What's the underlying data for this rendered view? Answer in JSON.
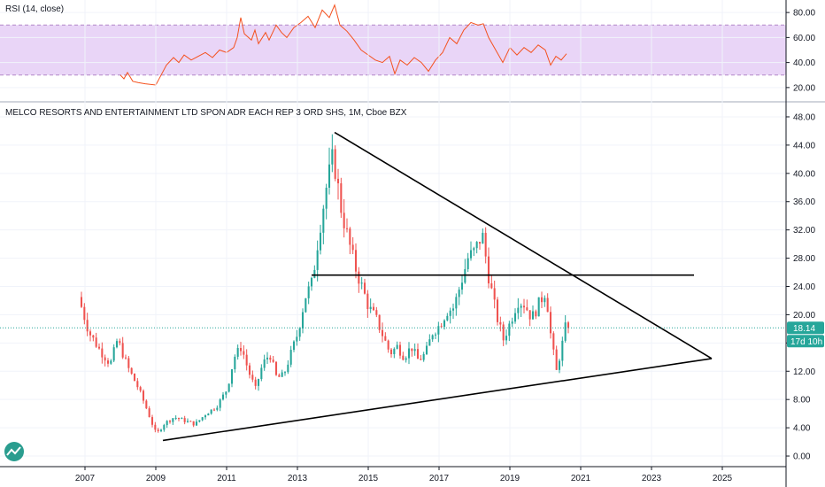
{
  "colors": {
    "up": "#26a69a",
    "down": "#ef5350",
    "rsi_line": "#f4511e",
    "rsi_band": "#e9d5f7",
    "rsi_band_border": "#b388c8",
    "grid": "#f0f3fa",
    "axis": "#131722",
    "price_tag": "#26a69a",
    "trendline": "#000000",
    "watermark": "#2a9d8f"
  },
  "rsi_panel": {
    "title": "RSI (14, close)",
    "ticks": [
      "80.00",
      "60.00",
      "40.00",
      "20.00"
    ],
    "tick_values": [
      80,
      60,
      40,
      20
    ],
    "upper_band": 70,
    "lower_band": 30,
    "points": [
      [
        2008.0,
        30
      ],
      [
        2008.1,
        27
      ],
      [
        2008.2,
        32
      ],
      [
        2008.35,
        25
      ],
      [
        2008.5,
        24
      ],
      [
        2008.7,
        23
      ],
      [
        2009.0,
        22
      ],
      [
        2009.15,
        30
      ],
      [
        2009.3,
        38
      ],
      [
        2009.5,
        44
      ],
      [
        2009.65,
        40
      ],
      [
        2009.8,
        46
      ],
      [
        2010.0,
        42
      ],
      [
        2010.2,
        45
      ],
      [
        2010.4,
        48
      ],
      [
        2010.6,
        44
      ],
      [
        2010.8,
        50
      ],
      [
        2011.0,
        48
      ],
      [
        2011.2,
        52
      ],
      [
        2011.3,
        60
      ],
      [
        2011.4,
        76
      ],
      [
        2011.5,
        63
      ],
      [
        2011.7,
        58
      ],
      [
        2011.8,
        66
      ],
      [
        2011.9,
        55
      ],
      [
        2012.1,
        64
      ],
      [
        2012.2,
        58
      ],
      [
        2012.4,
        70
      ],
      [
        2012.55,
        64
      ],
      [
        2012.7,
        60
      ],
      [
        2012.9,
        68
      ],
      [
        2013.1,
        72
      ],
      [
        2013.3,
        77
      ],
      [
        2013.5,
        68
      ],
      [
        2013.7,
        82
      ],
      [
        2013.9,
        76
      ],
      [
        2014.05,
        86
      ],
      [
        2014.2,
        70
      ],
      [
        2014.4,
        65
      ],
      [
        2014.6,
        58
      ],
      [
        2014.8,
        50
      ],
      [
        2015.0,
        46
      ],
      [
        2015.2,
        42
      ],
      [
        2015.4,
        40
      ],
      [
        2015.6,
        45
      ],
      [
        2015.75,
        31
      ],
      [
        2015.9,
        42
      ],
      [
        2016.1,
        38
      ],
      [
        2016.3,
        44
      ],
      [
        2016.5,
        40
      ],
      [
        2016.7,
        33
      ],
      [
        2016.9,
        42
      ],
      [
        2017.1,
        48
      ],
      [
        2017.3,
        60
      ],
      [
        2017.5,
        55
      ],
      [
        2017.7,
        66
      ],
      [
        2017.9,
        72
      ],
      [
        2018.1,
        70
      ],
      [
        2018.25,
        71
      ],
      [
        2018.4,
        60
      ],
      [
        2018.6,
        50
      ],
      [
        2018.8,
        40
      ],
      [
        2019.0,
        52
      ],
      [
        2019.2,
        46
      ],
      [
        2019.4,
        52
      ],
      [
        2019.6,
        48
      ],
      [
        2019.8,
        54
      ],
      [
        2020.0,
        50
      ],
      [
        2020.15,
        38
      ],
      [
        2020.3,
        45
      ],
      [
        2020.45,
        42
      ],
      [
        2020.6,
        47
      ]
    ]
  },
  "main_panel": {
    "title": "MELCO RESORTS AND ENTERTAINMENT LTD SPON ADR EACH REP 3 ORD SHS, 1M, Cboe BZX",
    "price_ticks": [
      "48.00",
      "44.00",
      "40.00",
      "36.00",
      "32.00",
      "28.00",
      "24.00",
      "20.00",
      "16.00",
      "12.00",
      "8.00",
      "4.00",
      "0.00"
    ],
    "price_tick_values": [
      48,
      44,
      40,
      36,
      32,
      28,
      24,
      20,
      16,
      12,
      8,
      4,
      0
    ],
    "year_ticks": [
      "2007",
      "2009",
      "2011",
      "2013",
      "2015",
      "2017",
      "2019",
      "2021",
      "2023",
      "2025"
    ],
    "year_tick_values": [
      2007,
      2009,
      2011,
      2013,
      2015,
      2017,
      2019,
      2021,
      2023,
      2025
    ],
    "last_price": "18.14",
    "last_price_value": 18.14,
    "countdown": "17d 10h"
  },
  "chart_data": {
    "type": "candlestick",
    "title": "MELCO RESORTS AND ENTERTAINMENT LTD SPON ADR EACH REP 3 ORD SHS, 1M, Cboe BZX",
    "xlabel": "",
    "ylabel": "",
    "xlim": [
      2004.6,
      2026.8
    ],
    "ylim": [
      -1.5,
      49.5
    ],
    "anchors": [
      [
        2006.9,
        22.5
      ],
      [
        2007.2,
        17.5
      ],
      [
        2007.5,
        15.0
      ],
      [
        2007.8,
        13.0
      ],
      [
        2008.0,
        16.5
      ],
      [
        2008.3,
        12.5
      ],
      [
        2008.6,
        9.5
      ],
      [
        2008.8,
        7.0
      ],
      [
        2009.1,
        3.0
      ],
      [
        2009.3,
        4.5
      ],
      [
        2009.6,
        5.5
      ],
      [
        2009.9,
        5.0
      ],
      [
        2010.2,
        4.5
      ],
      [
        2010.5,
        6.0
      ],
      [
        2010.8,
        7.0
      ],
      [
        2011.1,
        9.5
      ],
      [
        2011.3,
        14.0
      ],
      [
        2011.5,
        15.5
      ],
      [
        2011.7,
        12.0
      ],
      [
        2011.9,
        9.5
      ],
      [
        2012.1,
        13.0
      ],
      [
        2012.3,
        14.5
      ],
      [
        2012.5,
        11.0
      ],
      [
        2012.7,
        11.5
      ],
      [
        2012.9,
        14.5
      ],
      [
        2013.1,
        17.5
      ],
      [
        2013.3,
        22.5
      ],
      [
        2013.5,
        24.5
      ],
      [
        2013.7,
        32.0
      ],
      [
        2013.9,
        38.0
      ],
      [
        2014.1,
        42.5
      ],
      [
        2014.3,
        35.5
      ],
      [
        2014.5,
        31.0
      ],
      [
        2014.7,
        27.0
      ],
      [
        2014.9,
        24.0
      ],
      [
        2015.1,
        21.0
      ],
      [
        2015.3,
        19.5
      ],
      [
        2015.5,
        17.0
      ],
      [
        2015.7,
        14.5
      ],
      [
        2015.9,
        15.5
      ],
      [
        2016.1,
        14.0
      ],
      [
        2016.3,
        15.5
      ],
      [
        2016.5,
        13.5
      ],
      [
        2016.7,
        14.5
      ],
      [
        2016.9,
        17.5
      ],
      [
        2017.1,
        18.5
      ],
      [
        2017.3,
        20.5
      ],
      [
        2017.5,
        21.0
      ],
      [
        2017.7,
        24.5
      ],
      [
        2017.9,
        28.0
      ],
      [
        2018.1,
        29.0
      ],
      [
        2018.3,
        31.5
      ],
      [
        2018.5,
        25.0
      ],
      [
        2018.7,
        20.0
      ],
      [
        2018.9,
        16.5
      ],
      [
        2019.1,
        19.0
      ],
      [
        2019.3,
        22.0
      ],
      [
        2019.5,
        21.5
      ],
      [
        2019.7,
        19.5
      ],
      [
        2019.9,
        21.5
      ],
      [
        2020.1,
        23.5
      ],
      [
        2020.25,
        16.5
      ],
      [
        2020.4,
        12.0
      ],
      [
        2020.55,
        15.5
      ],
      [
        2020.65,
        18.14
      ]
    ],
    "trendlines": [
      {
        "name": "upper-trendline",
        "x1": 2014.05,
        "y1": 45.8,
        "x2": 2024.7,
        "y2": 13.8
      },
      {
        "name": "lower-trendline",
        "x1": 2009.2,
        "y1": 2.2,
        "x2": 2024.7,
        "y2": 13.8
      },
      {
        "name": "horizontal-resistance",
        "x1": 2013.4,
        "y1": 25.6,
        "x2": 2024.2,
        "y2": 25.6
      }
    ]
  }
}
